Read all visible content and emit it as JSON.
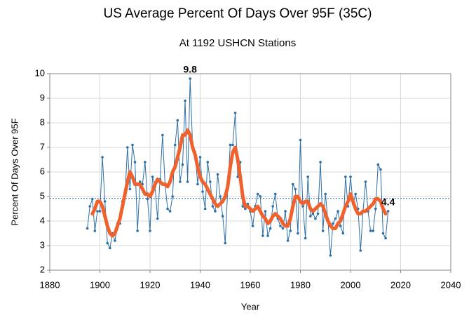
{
  "chart_data": {
    "type": "line",
    "title": "US Average Percent Of Days Over 95F (35C)",
    "subtitle": "At 1192 USHCN Stations",
    "x_label": "Year",
    "y_label": "Percent Of Days Over 95F",
    "x": [
      1895,
      1896,
      1897,
      1898,
      1899,
      1900,
      1901,
      1902,
      1903,
      1904,
      1905,
      1906,
      1907,
      1908,
      1909,
      1910,
      1911,
      1912,
      1913,
      1914,
      1915,
      1916,
      1917,
      1918,
      1919,
      1920,
      1921,
      1922,
      1923,
      1924,
      1925,
      1926,
      1927,
      1928,
      1929,
      1930,
      1931,
      1932,
      1933,
      1934,
      1935,
      1936,
      1937,
      1938,
      1939,
      1940,
      1941,
      1942,
      1943,
      1944,
      1945,
      1946,
      1947,
      1948,
      1949,
      1950,
      1951,
      1952,
      1953,
      1954,
      1955,
      1956,
      1957,
      1958,
      1959,
      1960,
      1961,
      1962,
      1963,
      1964,
      1965,
      1966,
      1967,
      1968,
      1969,
      1970,
      1971,
      1972,
      1973,
      1974,
      1975,
      1976,
      1977,
      1978,
      1979,
      1980,
      1981,
      1982,
      1983,
      1984,
      1985,
      1986,
      1987,
      1988,
      1989,
      1990,
      1991,
      1992,
      1993,
      1994,
      1995,
      1996,
      1997,
      1998,
      1999,
      2000,
      2001,
      2002,
      2003,
      2004,
      2005,
      2006,
      2007,
      2008,
      2009,
      2010,
      2011,
      2012,
      2013,
      2014,
      2015
    ],
    "series": [
      {
        "color": "#2c6ea6",
        "width": 1,
        "markers": true,
        "values": [
          3.7,
          4.6,
          4.9,
          3.6,
          4.4,
          4.4,
          6.6,
          4.8,
          3.1,
          2.9,
          3.5,
          3.2,
          3.9,
          3.9,
          4.8,
          5.0,
          7.0,
          5.3,
          7.1,
          6.4,
          3.6,
          5.6,
          5.5,
          6.4,
          4.9,
          3.6,
          5.8,
          5.4,
          4.1,
          5.7,
          7.5,
          5.5,
          4.5,
          4.4,
          5.0,
          7.1,
          8.1,
          5.6,
          6.3,
          8.9,
          5.6,
          9.8,
          7.0,
          6.8,
          5.5,
          6.6,
          5.2,
          4.5,
          6.4,
          5.6,
          4.6,
          4.4,
          5.9,
          5.0,
          4.2,
          3.1,
          5.3,
          7.1,
          7.1,
          8.4,
          5.8,
          6.4,
          4.6,
          4.5,
          4.7,
          4.4,
          3.8,
          4.6,
          5.1,
          5.0,
          3.4,
          4.4,
          3.4,
          3.7,
          4.6,
          5.1,
          4.1,
          3.8,
          3.7,
          4.4,
          3.2,
          3.6,
          5.5,
          5.3,
          3.5,
          7.3,
          4.6,
          3.3,
          5.8,
          4.2,
          4.3,
          4.1,
          4.3,
          6.4,
          3.6,
          5.1,
          4.0,
          2.6,
          3.9,
          4.1,
          4.4,
          3.8,
          3.5,
          5.8,
          4.6,
          5.8,
          4.7,
          5.1,
          4.5,
          2.8,
          4.4,
          5.6,
          4.4,
          3.6,
          3.6,
          4.5,
          6.3,
          6.1,
          3.5,
          3.3,
          4.4
        ]
      },
      {
        "color": "#f0622d",
        "width": 5,
        "markers": false,
        "values": [
          null,
          null,
          4.3,
          4.5,
          4.8,
          4.8,
          4.6,
          4.2,
          3.8,
          3.5,
          3.4,
          3.5,
          3.8,
          4.1,
          4.6,
          5.1,
          5.6,
          6.0,
          5.8,
          5.5,
          5.5,
          5.5,
          5.3,
          5.1,
          5.1,
          5.0,
          5.2,
          5.5,
          5.7,
          5.6,
          5.5,
          5.5,
          5.4,
          5.6,
          6.0,
          6.2,
          6.6,
          7.0,
          7.5,
          7.5,
          7.7,
          7.5,
          7.0,
          6.7,
          6.2,
          5.8,
          5.6,
          5.5,
          5.3,
          5.1,
          4.9,
          4.7,
          4.6,
          4.7,
          4.8,
          5.0,
          5.4,
          6.2,
          6.8,
          7.0,
          6.5,
          5.8,
          5.0,
          4.6,
          4.6,
          4.5,
          4.4,
          4.5,
          4.6,
          4.4,
          4.2,
          4.1,
          3.9,
          4.0,
          4.2,
          4.3,
          4.2,
          4.1,
          3.9,
          3.8,
          3.8,
          4.1,
          4.6,
          5.0,
          5.0,
          4.8,
          4.7,
          4.8,
          4.8,
          4.5,
          4.4,
          4.5,
          4.6,
          4.7,
          4.6,
          4.3,
          4.0,
          3.8,
          3.7,
          3.7,
          3.9,
          4.0,
          4.3,
          4.6,
          4.8,
          5.1,
          4.8,
          4.5,
          4.3,
          4.3,
          4.4,
          4.4,
          4.5,
          4.6,
          4.7,
          4.9,
          4.9,
          4.8,
          4.5,
          4.3,
          null
        ]
      }
    ],
    "reference_line": {
      "value": 4.92,
      "color": "#2c6ea6"
    },
    "annotations": [
      {
        "text": "9.8",
        "x": 1936,
        "y": 9.8
      },
      {
        "text": "4.4",
        "x": 2015,
        "y": 4.4
      }
    ],
    "xlim": [
      1880,
      2040
    ],
    "xticks": [
      1880,
      1900,
      1920,
      1940,
      1960,
      1980,
      2000,
      2020,
      2040
    ],
    "ylim": [
      2,
      10
    ],
    "yticks": [
      2,
      3,
      4,
      5,
      6,
      7,
      8,
      9,
      10
    ],
    "grid": true
  }
}
